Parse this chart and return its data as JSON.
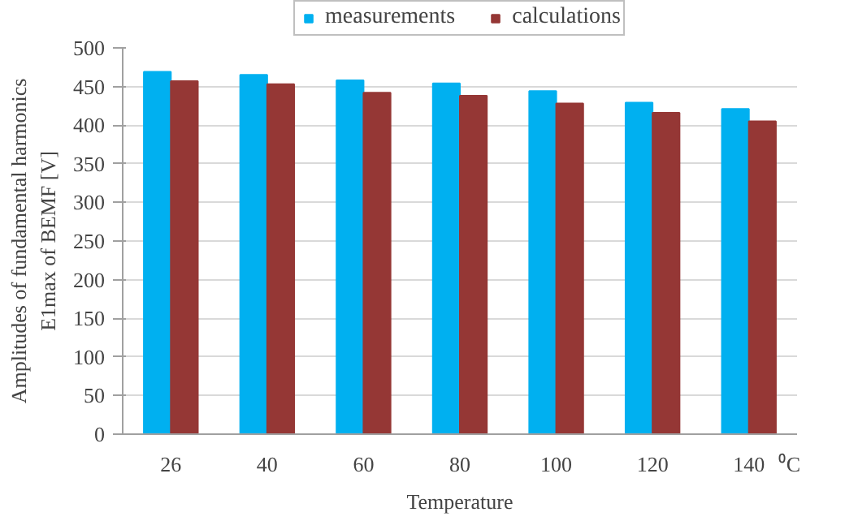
{
  "chart_data": {
    "type": "bar",
    "xlabel": "Temperature",
    "ylabel": "Amplitudes of fundamental harmonics E1max of BEMF [V]",
    "categories": [
      "26",
      "40",
      "60",
      "80",
      "100",
      "120",
      "140"
    ],
    "series": [
      {
        "name": "measurements",
        "color": "#00b0f0",
        "values": [
          469,
          465,
          458,
          454,
          444,
          429,
          421
        ]
      },
      {
        "name": "calculations",
        "color": "#953735",
        "values": [
          457,
          453,
          442,
          438,
          428,
          416,
          405
        ]
      }
    ],
    "ylim": [
      0,
      500
    ],
    "yticks": [
      0,
      50,
      100,
      150,
      200,
      250,
      300,
      350,
      400,
      450,
      500
    ],
    "grid": "y",
    "legend": "top",
    "annotations": [
      "⁰C"
    ]
  }
}
